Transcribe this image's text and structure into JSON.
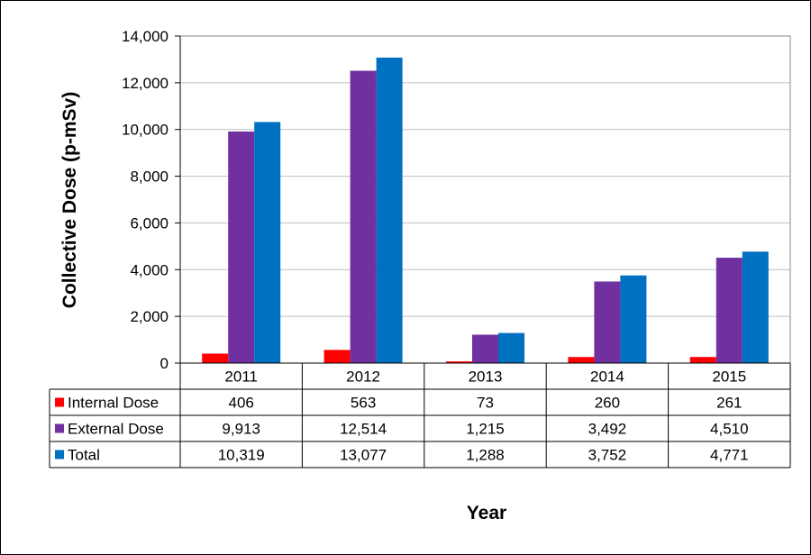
{
  "chart_data": {
    "type": "bar",
    "title": "",
    "xlabel": "Year",
    "ylabel": "Collective Dose (p-mSv)",
    "ylim": [
      0,
      14000
    ],
    "yticks": [
      "0",
      "2,000",
      "4,000",
      "6,000",
      "8,000",
      "10,000",
      "12,000",
      "14,000"
    ],
    "grid": true,
    "legend": "data-table",
    "categories": [
      "2011",
      "2012",
      "2013",
      "2014",
      "2015"
    ],
    "series": [
      {
        "name": "Internal Dose",
        "color": "#FF0000",
        "values": [
          406,
          563,
          73,
          260,
          261
        ],
        "labels": [
          "406",
          "563",
          "73",
          "260",
          "261"
        ]
      },
      {
        "name": "External Dose",
        "color": "#7030A0",
        "values": [
          9913,
          12514,
          1215,
          3492,
          4510
        ],
        "labels": [
          "9,913",
          "12,514",
          "1,215",
          "3,492",
          "4,510"
        ]
      },
      {
        "name": "Total",
        "color": "#0070C0",
        "values": [
          10319,
          13077,
          1288,
          3752,
          4771
        ],
        "labels": [
          "10,319",
          "13,077",
          "1,288",
          "3,752",
          "4,771"
        ]
      }
    ]
  }
}
